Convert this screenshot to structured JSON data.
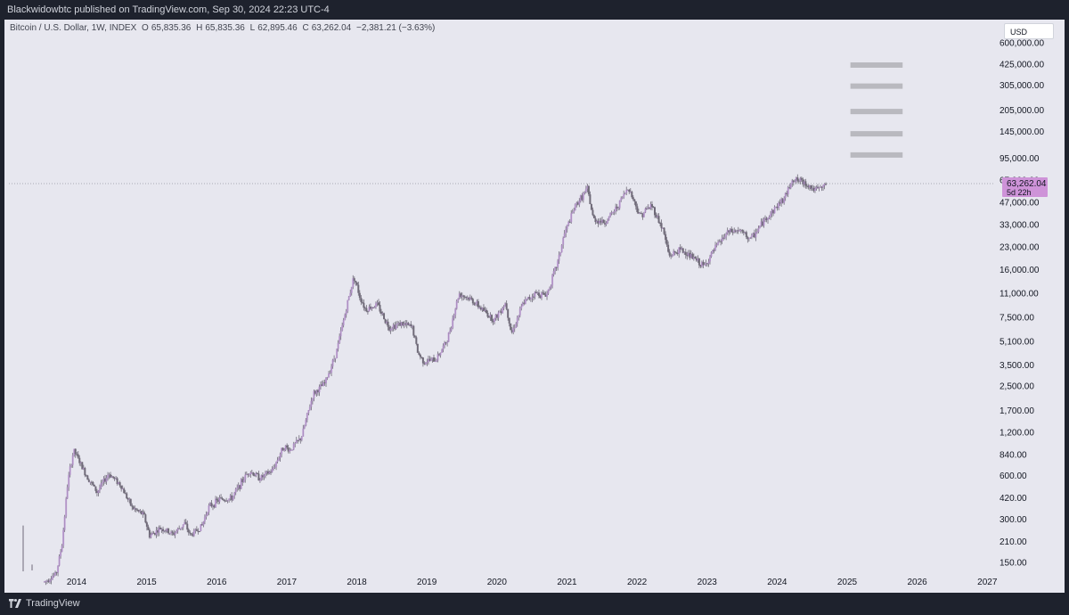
{
  "header": {
    "publisher_text": "Blackwidowbtc published on TradingView.com, Sep 30, 2024 22:23 UTC-4"
  },
  "legend": {
    "symbol": "Bitcoin / U.S. Dollar, 1W, INDEX",
    "open_label": "O",
    "open_value": "65,835.36",
    "high_label": "H",
    "high_value": "65,835.36",
    "low_label": "L",
    "low_value": "62,895.46",
    "close_label": "C",
    "close_value": "63,262.04",
    "change": "−2,381.21 (−3.63%)"
  },
  "currency": "USD",
  "footer": {
    "brand": "TradingView"
  },
  "colors": {
    "background": "#e7e7ef",
    "frame": "#1e222d",
    "candle": "#6f6a78",
    "candle_up_accent": "#b58fcf",
    "price_badge": "#ce93d8",
    "target_lines": "#b9b9bf",
    "axis_text": "#131722"
  },
  "chart_data": {
    "type": "candlestick",
    "title": "",
    "x_scale": "time",
    "y_scale": "log",
    "ylim": [
      120,
      700000
    ],
    "y_ticks": [
      "150.00",
      "210.00",
      "300.00",
      "420.00",
      "600.00",
      "840.00",
      "1,200.00",
      "1,700.00",
      "2,500.00",
      "3,500.00",
      "5,100.00",
      "7,500.00",
      "11,000.00",
      "16,000.00",
      "23,000.00",
      "33,000.00",
      "47,000.00",
      "67,000.00",
      "95,000.00",
      "145,000.00",
      "205,000.00",
      "305,000.00",
      "425,000.00",
      "600,000.00"
    ],
    "x_ticks": [
      "2014",
      "2015",
      "2016",
      "2017",
      "2018",
      "2019",
      "2020",
      "2021",
      "2022",
      "2023",
      "2024",
      "2025",
      "2026",
      "2027"
    ],
    "last_price": "63,262.04",
    "countdown": "5d 22h",
    "price_path": [
      [
        "2013-07",
        110
      ],
      [
        "2013-09",
        125
      ],
      [
        "2013-10",
        200
      ],
      [
        "2013-11",
        550
      ],
      [
        "2013-12",
        900
      ],
      [
        "2014-02",
        620
      ],
      [
        "2014-04",
        460
      ],
      [
        "2014-06",
        620
      ],
      [
        "2014-08",
        520
      ],
      [
        "2014-10",
        360
      ],
      [
        "2014-12",
        320
      ],
      [
        "2015-01",
        230
      ],
      [
        "2015-03",
        260
      ],
      [
        "2015-05",
        235
      ],
      [
        "2015-07",
        280
      ],
      [
        "2015-08",
        230
      ],
      [
        "2015-10",
        270
      ],
      [
        "2015-11",
        360
      ],
      [
        "2016-01",
        410
      ],
      [
        "2016-03",
        415
      ],
      [
        "2016-06",
        650
      ],
      [
        "2016-08",
        575
      ],
      [
        "2016-10",
        650
      ],
      [
        "2016-12",
        960
      ],
      [
        "2017-01",
        900
      ],
      [
        "2017-03",
        1100
      ],
      [
        "2017-05",
        2200
      ],
      [
        "2017-07",
        2600
      ],
      [
        "2017-09",
        4300
      ],
      [
        "2017-11",
        9800
      ],
      [
        "2017-12",
        14500
      ],
      [
        "2018-01",
        10500
      ],
      [
        "2018-02",
        8500
      ],
      [
        "2018-04",
        9200
      ],
      [
        "2018-06",
        6400
      ],
      [
        "2018-08",
        6800
      ],
      [
        "2018-10",
        6400
      ],
      [
        "2018-11",
        4200
      ],
      [
        "2018-12",
        3700
      ],
      [
        "2019-02",
        3800
      ],
      [
        "2019-04",
        5200
      ],
      [
        "2019-06",
        11000
      ],
      [
        "2019-08",
        10000
      ],
      [
        "2019-10",
        8500
      ],
      [
        "2019-12",
        7200
      ],
      [
        "2020-02",
        9500
      ],
      [
        "2020-03",
        5800
      ],
      [
        "2020-05",
        9400
      ],
      [
        "2020-07",
        11000
      ],
      [
        "2020-09",
        10700
      ],
      [
        "2020-11",
        18500
      ],
      [
        "2020-12",
        28000
      ],
      [
        "2021-02",
        45000
      ],
      [
        "2021-04",
        58000
      ],
      [
        "2021-05",
        36000
      ],
      [
        "2021-07",
        34000
      ],
      [
        "2021-09",
        43000
      ],
      [
        "2021-11",
        60000
      ],
      [
        "2022-01",
        38000
      ],
      [
        "2022-03",
        45000
      ],
      [
        "2022-05",
        30000
      ],
      [
        "2022-06",
        20000
      ],
      [
        "2022-08",
        22000
      ],
      [
        "2022-10",
        19500
      ],
      [
        "2022-12",
        16800
      ],
      [
        "2023-02",
        23000
      ],
      [
        "2023-04",
        29000
      ],
      [
        "2023-06",
        30000
      ],
      [
        "2023-08",
        26000
      ],
      [
        "2023-10",
        34000
      ],
      [
        "2023-12",
        42000
      ],
      [
        "2024-02",
        52000
      ],
      [
        "2024-03",
        68000
      ],
      [
        "2024-05",
        65000
      ],
      [
        "2024-07",
        57000
      ],
      [
        "2024-08",
        59000
      ],
      [
        "2024-09",
        63262
      ]
    ],
    "target_levels": [
      {
        "price": 420000,
        "x_start": "2024-10",
        "x_end": "2025-10"
      },
      {
        "price": 300000,
        "x_start": "2024-10",
        "x_end": "2025-10"
      },
      {
        "price": 200000,
        "x_start": "2024-10",
        "x_end": "2025-10"
      },
      {
        "price": 140000,
        "x_start": "2024-10",
        "x_end": "2025-10"
      },
      {
        "price": 100000,
        "x_start": "2024-10",
        "x_end": "2025-10"
      }
    ]
  }
}
